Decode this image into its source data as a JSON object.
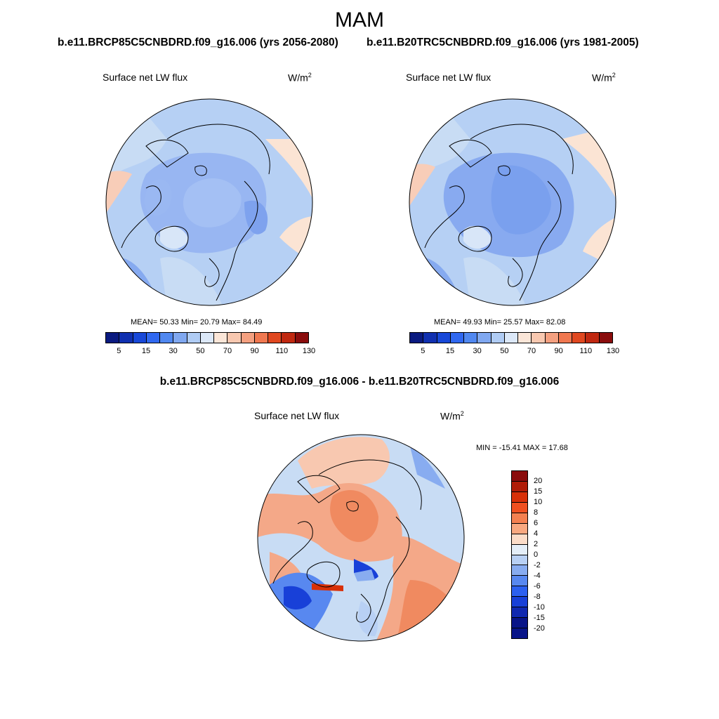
{
  "title": "MAM",
  "panels": [
    {
      "case_title": "b.e11.BRCP85C5CNBDRD.f09_g16.006 (yrs 2056-2080)",
      "variable": "Surface net LW flux",
      "units": "W/m",
      "units_exp": "2",
      "stats": "MEAN=  50.33  Min=  20.79  Max=  84.49"
    },
    {
      "case_title": "b.e11.B20TRC5CNBDRD.f09_g16.006 (yrs 1981-2005)",
      "variable": "Surface net LW flux",
      "units": "W/m",
      "units_exp": "2",
      "stats": "MEAN=  49.93  Min=  25.57  Max=  82.08"
    }
  ],
  "difference": {
    "title": "b.e11.BRCP85C5CNBDRD.f09_g16.006 - b.e11.B20TRC5CNBDRD.f09_g16.006",
    "variable": "Surface net LW flux",
    "units": "W/m",
    "units_exp": "2",
    "stats": "MIN = -15.41 MAX =  17.68"
  },
  "colorbar_main": {
    "colors": [
      "#0a1a80",
      "#1030b0",
      "#1848d8",
      "#3068f0",
      "#5088f0",
      "#80a8f0",
      "#b0ccf4",
      "#dce8f8",
      "#fbe6d8",
      "#f8c8b0",
      "#f4a080",
      "#f07850",
      "#e04820",
      "#c02810",
      "#8a0c0c"
    ],
    "labels": [
      "5",
      "15",
      "30",
      "50",
      "70",
      "90",
      "110",
      "130"
    ]
  },
  "colorbar_diff": {
    "colors": [
      "#8a0c0c",
      "#b01c08",
      "#d83008",
      "#f05020",
      "#f48050",
      "#f8a880",
      "#fbdcc8",
      "#e4eef8",
      "#b8d0f4",
      "#88acf0",
      "#5888f0",
      "#2c60f0",
      "#1840d8",
      "#1028b0",
      "#081488"
    ],
    "labels": [
      "20",
      "15",
      "10",
      "8",
      "6",
      "4",
      "2",
      "0",
      "-2",
      "-4",
      "-6",
      "-8",
      "-10",
      "-15",
      "-20"
    ]
  }
}
